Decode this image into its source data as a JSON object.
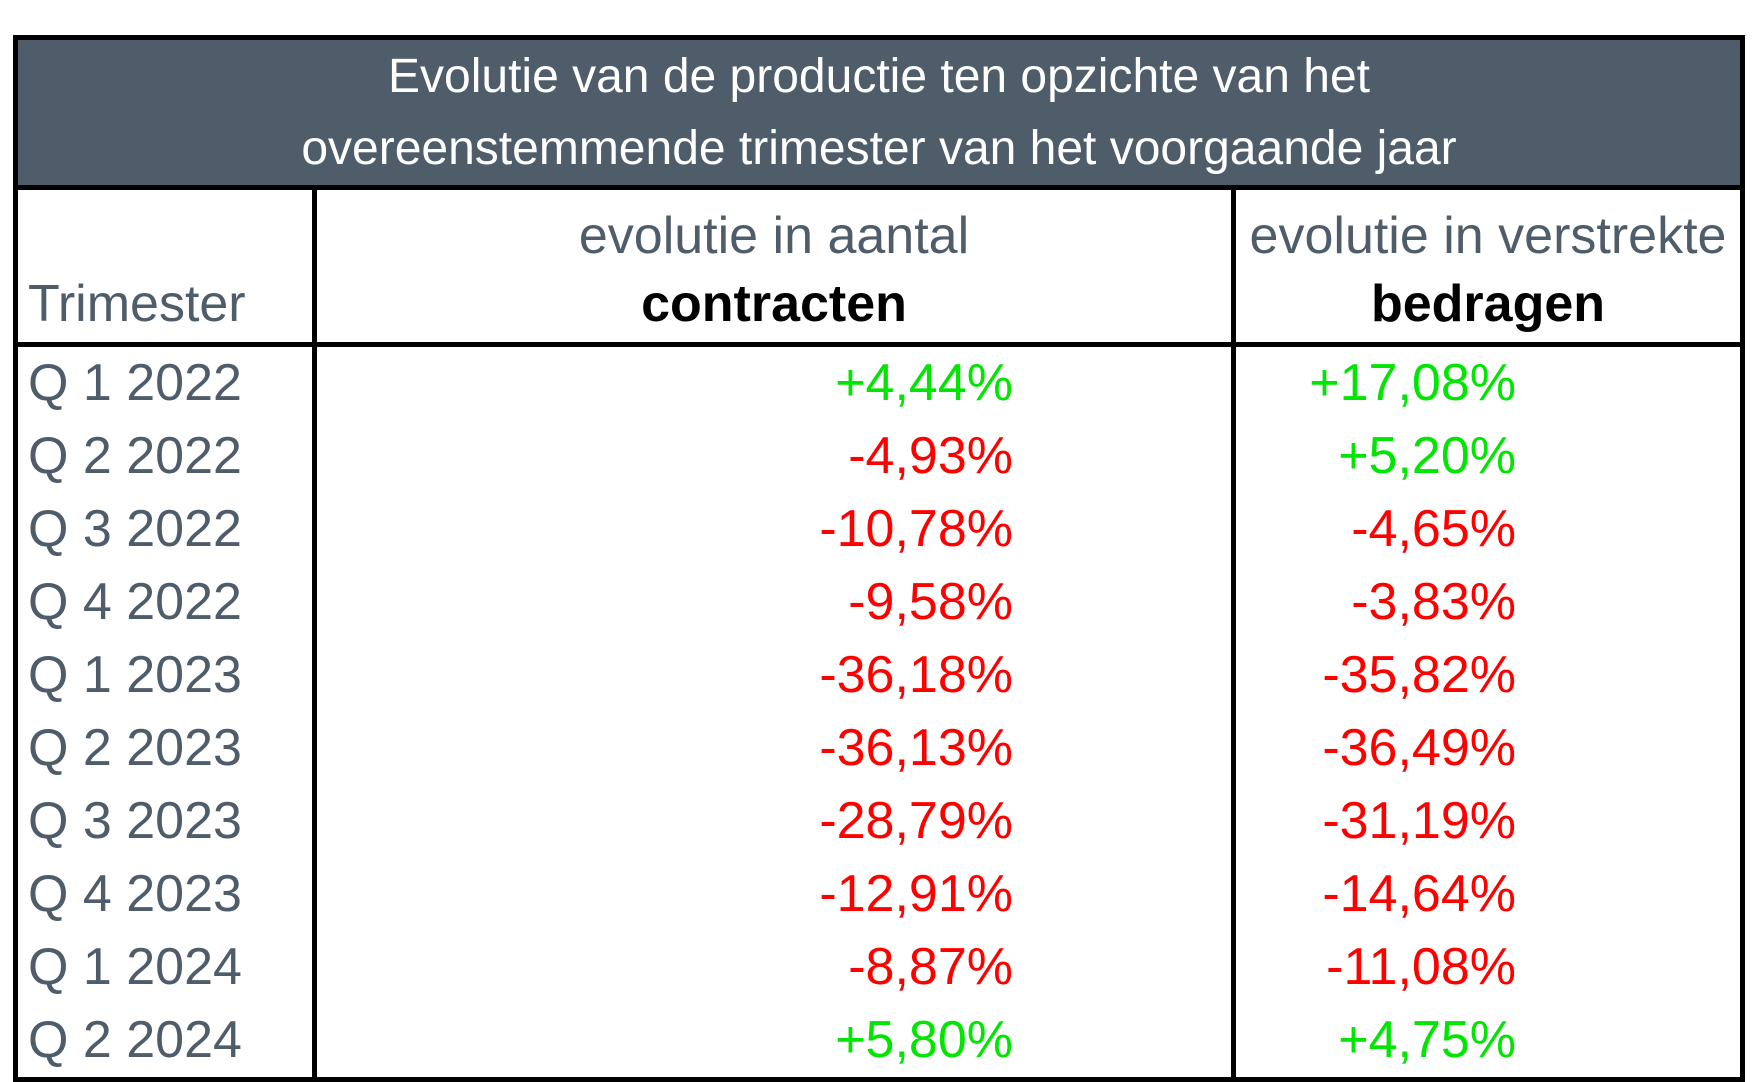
{
  "title": {
    "line1": "Evolutie van de productie ten opzichte van het",
    "line2": "overeenstemmende trimester van het voorgaande jaar"
  },
  "headers": {
    "trimester": "Trimester",
    "contracts_line1": "evolutie in aantal",
    "contracts_line2": "contracten",
    "amounts_line1": "evolutie in verstrekte",
    "amounts_line2": "bedragen"
  },
  "colors": {
    "positive": "#00e600",
    "negative": "#ff0000",
    "header_bg": "#4f5d6a"
  },
  "rows": [
    {
      "quarter": "Q 1 2022",
      "contracts": "+4,44%",
      "amounts": "+17,08%"
    },
    {
      "quarter": "Q 2 2022",
      "contracts": "-4,93%",
      "amounts": "+5,20%"
    },
    {
      "quarter": "Q 3 2022",
      "contracts": "-10,78%",
      "amounts": "-4,65%"
    },
    {
      "quarter": "Q 4 2022",
      "contracts": "-9,58%",
      "amounts": "-3,83%"
    },
    {
      "quarter": "Q 1 2023",
      "contracts": "-36,18%",
      "amounts": "-35,82%"
    },
    {
      "quarter": "Q 2 2023",
      "contracts": "-36,13%",
      "amounts": "-36,49%"
    },
    {
      "quarter": "Q 3 2023",
      "contracts": "-28,79%",
      "amounts": "-31,19%"
    },
    {
      "quarter": "Q 4 2023",
      "contracts": "-12,91%",
      "amounts": "-14,64%"
    },
    {
      "quarter": "Q 1 2024",
      "contracts": "-8,87%",
      "amounts": "-11,08%"
    },
    {
      "quarter": "Q 2 2024",
      "contracts": "+5,80%",
      "amounts": "+4,75%"
    }
  ]
}
